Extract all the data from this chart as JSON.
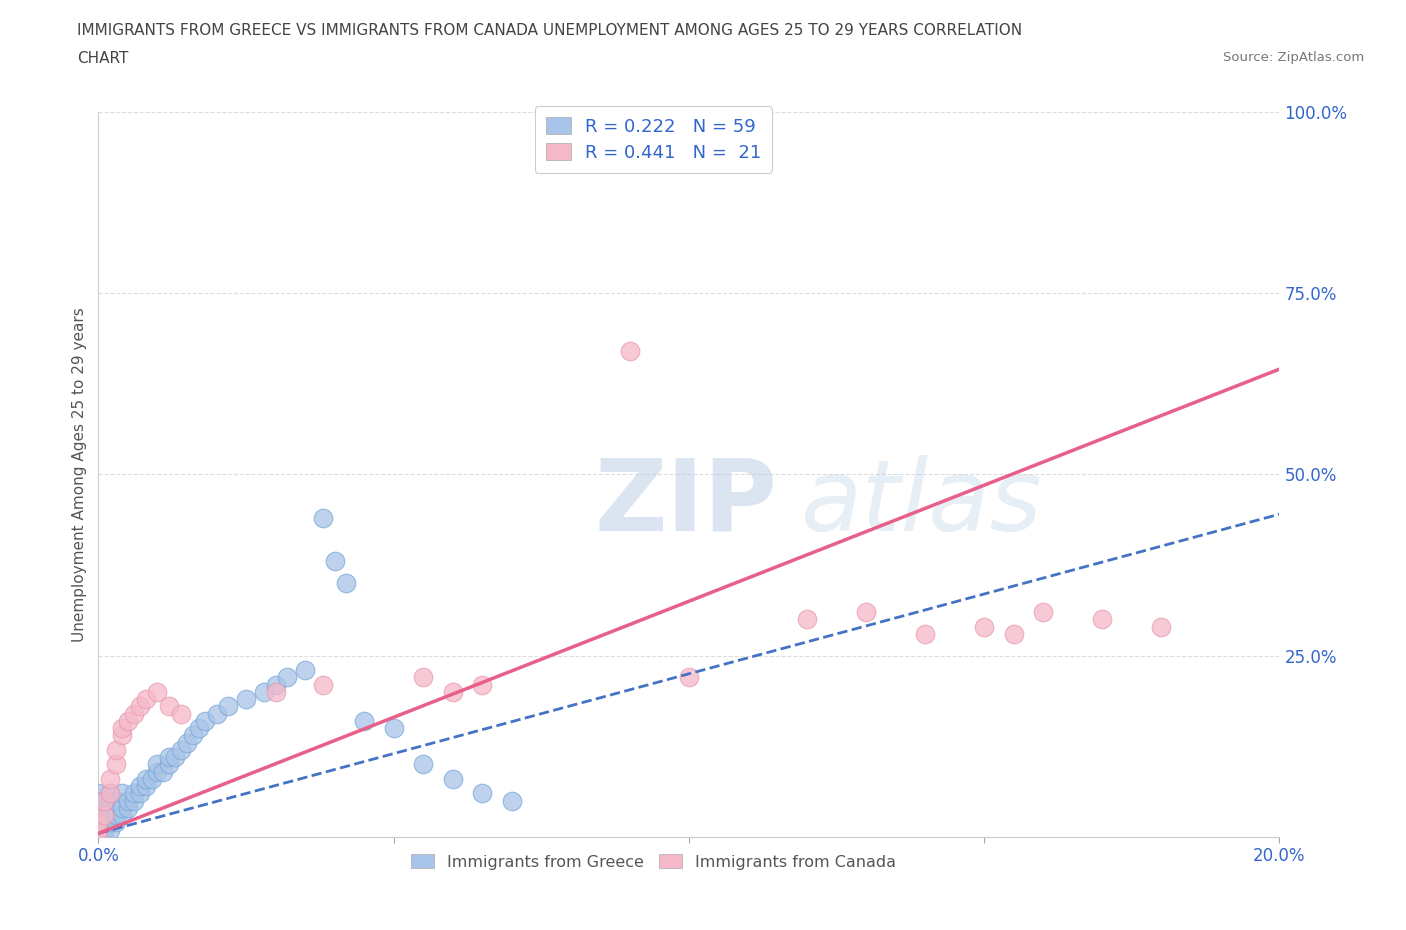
{
  "title_line1": "IMMIGRANTS FROM GREECE VS IMMIGRANTS FROM CANADA UNEMPLOYMENT AMONG AGES 25 TO 29 YEARS CORRELATION",
  "title_line2": "CHART",
  "source": "Source: ZipAtlas.com",
  "ylabel": "Unemployment Among Ages 25 to 29 years",
  "xlim": [
    0.0,
    0.2
  ],
  "ylim": [
    0.0,
    1.0
  ],
  "greece_color": "#a8c4e8",
  "canada_color": "#f5b8c8",
  "greece_edge": "#7aa8d8",
  "canada_edge": "#e89ab0",
  "trendline_greece_color": "#4472c4",
  "trendline_canada_color": "#e8608a",
  "watermark_color": "#c8d8f0",
  "legend_color": "#3366cc",
  "axis_label_color": "#3366cc",
  "background_color": "#ffffff",
  "grid_color": "#cccccc",
  "title_color": "#555555",
  "greece_x": [
    0.0,
    0.0,
    0.0,
    0.0,
    0.0,
    0.0,
    0.0,
    0.0,
    0.001,
    0.001,
    0.001,
    0.001,
    0.001,
    0.002,
    0.002,
    0.002,
    0.002,
    0.003,
    0.003,
    0.003,
    0.004,
    0.004,
    0.004,
    0.005,
    0.005,
    0.006,
    0.006,
    0.007,
    0.007,
    0.008,
    0.008,
    0.009,
    0.01,
    0.01,
    0.011,
    0.012,
    0.012,
    0.013,
    0.014,
    0.015,
    0.016,
    0.017,
    0.018,
    0.02,
    0.022,
    0.025,
    0.028,
    0.03,
    0.032,
    0.035,
    0.038,
    0.04,
    0.042,
    0.045,
    0.05,
    0.055,
    0.06,
    0.065,
    0.07
  ],
  "greece_y": [
    0.0,
    0.0,
    0.01,
    0.02,
    0.03,
    0.04,
    0.05,
    0.06,
    0.0,
    0.01,
    0.02,
    0.04,
    0.05,
    0.01,
    0.02,
    0.03,
    0.06,
    0.02,
    0.03,
    0.05,
    0.03,
    0.04,
    0.06,
    0.04,
    0.05,
    0.05,
    0.06,
    0.06,
    0.07,
    0.07,
    0.08,
    0.08,
    0.09,
    0.1,
    0.09,
    0.1,
    0.11,
    0.11,
    0.12,
    0.13,
    0.14,
    0.15,
    0.16,
    0.17,
    0.18,
    0.19,
    0.2,
    0.21,
    0.22,
    0.23,
    0.44,
    0.38,
    0.35,
    0.16,
    0.15,
    0.1,
    0.08,
    0.06,
    0.05
  ],
  "canada_x": [
    0.0,
    0.0,
    0.0,
    0.001,
    0.001,
    0.002,
    0.002,
    0.003,
    0.003,
    0.004,
    0.004,
    0.005,
    0.006,
    0.007,
    0.008,
    0.01,
    0.012,
    0.014,
    0.03,
    0.038,
    0.055,
    0.06,
    0.065,
    0.09,
    0.1,
    0.12,
    0.13,
    0.14,
    0.15,
    0.155,
    0.16,
    0.17,
    0.18
  ],
  "canada_y": [
    0.0,
    0.01,
    0.02,
    0.03,
    0.05,
    0.06,
    0.08,
    0.1,
    0.12,
    0.14,
    0.15,
    0.16,
    0.17,
    0.18,
    0.19,
    0.2,
    0.18,
    0.17,
    0.2,
    0.21,
    0.22,
    0.2,
    0.21,
    0.67,
    0.22,
    0.3,
    0.31,
    0.28,
    0.29,
    0.28,
    0.31,
    0.3,
    0.29
  ]
}
